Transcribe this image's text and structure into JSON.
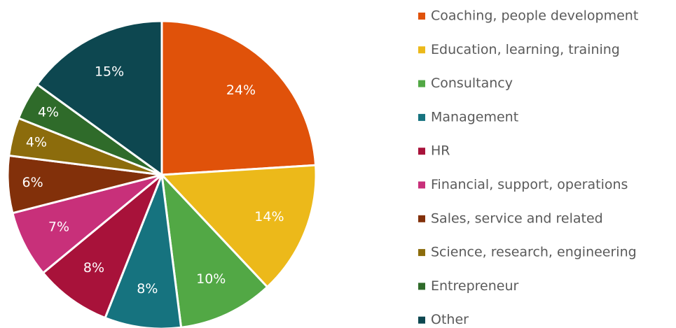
{
  "chart_data": {
    "type": "pie",
    "categories": [
      "Coaching, people development",
      "Education, learning, training",
      "Consultancy",
      "Management",
      "HR",
      "Financial, support, operations",
      "Sales, service and related",
      "Science, research, engineering",
      "Entrepreneur",
      "Other"
    ],
    "values": [
      24,
      14,
      10,
      8,
      8,
      7,
      6,
      4,
      4,
      15
    ],
    "value_labels": [
      "24%",
      "14%",
      "10%",
      "8%",
      "8%",
      "7%",
      "6%",
      "4%",
      "4%",
      "15%"
    ],
    "colors": [
      "#e0520a",
      "#ecb91a",
      "#52a845",
      "#16737f",
      "#a8123a",
      "#c8307a",
      "#82300a",
      "#8c6c0c",
      "#2f6b2a",
      "#0d4750"
    ],
    "legend": "right"
  }
}
